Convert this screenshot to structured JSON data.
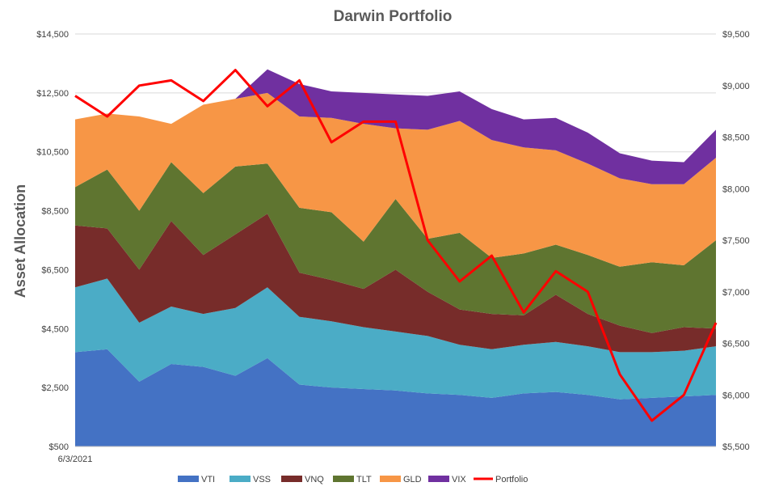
{
  "chart_data": {
    "type": "area",
    "title": "Darwin Portfolio",
    "ylabel": "Asset Allocation",
    "y2label": "",
    "x_start_label": "6/3/2021",
    "ylim": [
      500,
      14500
    ],
    "y_ticks": [
      "$500",
      "$2,500",
      "$4,500",
      "$6,500",
      "$8,500",
      "$10,500",
      "$12,500",
      "$14,500"
    ],
    "y2lim": [
      5500,
      9500
    ],
    "y2_ticks": [
      "$5,500",
      "$6,000",
      "$6,500",
      "$7,000",
      "$7,500",
      "$8,000",
      "$8,500",
      "$9,000",
      "$9,500"
    ],
    "grid": true,
    "legend_position": "bottom",
    "x_index": [
      0,
      5,
      10,
      15,
      20,
      25,
      30,
      35,
      40,
      45,
      50,
      55,
      60,
      65,
      70,
      75,
      80,
      85,
      90,
      95,
      100
    ],
    "series": [
      {
        "name": "VTI",
        "color": "#4472c4",
        "kind": "stacked-area",
        "values": [
          3200,
          3300,
          2200,
          2800,
          2700,
          2400,
          3000,
          2100,
          2000,
          1950,
          1900,
          1800,
          1750,
          1650,
          1800,
          1850,
          1750,
          1600,
          1650,
          1700,
          1750
        ]
      },
      {
        "name": "VSS",
        "color": "#4bacc6",
        "kind": "stacked-area",
        "values": [
          2200,
          2400,
          2000,
          1950,
          1800,
          2300,
          2400,
          2300,
          2250,
          2100,
          2000,
          1950,
          1700,
          1650,
          1650,
          1700,
          1650,
          1600,
          1550,
          1550,
          1650
        ]
      },
      {
        "name": "VNQ",
        "color": "#772c2a",
        "kind": "stacked-area",
        "values": [
          2100,
          1700,
          1800,
          2900,
          2000,
          2500,
          2500,
          1500,
          1400,
          1300,
          2100,
          1500,
          1200,
          1200,
          1000,
          1600,
          1100,
          900,
          650,
          800,
          600
        ]
      },
      {
        "name": "TLT",
        "color": "#5f7530",
        "kind": "stacked-area",
        "values": [
          1300,
          2000,
          2000,
          2000,
          2100,
          2300,
          1700,
          2200,
          2300,
          1600,
          2400,
          1800,
          2600,
          1900,
          2100,
          1700,
          2000,
          2000,
          2400,
          2100,
          3000
        ]
      },
      {
        "name": "GLD",
        "color": "#f79646",
        "kind": "stacked-area",
        "values": [
          2300,
          1900,
          3200,
          1300,
          3000,
          2300,
          2400,
          3100,
          3200,
          4000,
          2400,
          3700,
          3800,
          4000,
          3600,
          3200,
          3100,
          3000,
          2650,
          2750,
          2800
        ]
      },
      {
        "name": "VIX",
        "color": "#7030a0",
        "kind": "stacked-area",
        "values": [
          0,
          0,
          0,
          0,
          0,
          0,
          800,
          1100,
          900,
          1050,
          1150,
          1150,
          1000,
          1050,
          950,
          1100,
          1050,
          850,
          800,
          750,
          950
        ]
      },
      {
        "name": "Portfolio",
        "color": "#ff0000",
        "kind": "line",
        "axis": "secondary",
        "values": [
          8900,
          8700,
          9000,
          9050,
          8850,
          9150,
          8800,
          9050,
          8450,
          8650,
          8650,
          7500,
          7100,
          7350,
          6800,
          7200,
          7000,
          6200,
          5750,
          6000,
          6700
        ]
      }
    ]
  }
}
